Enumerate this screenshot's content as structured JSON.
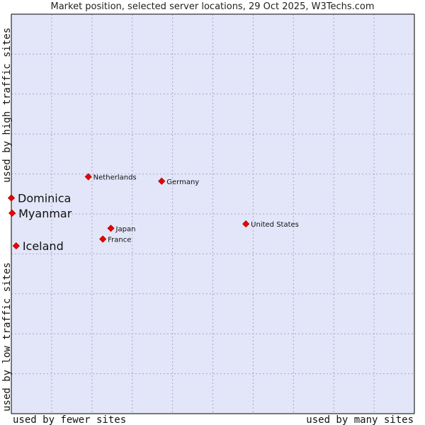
{
  "chart_data": {
    "type": "scatter",
    "title": "Market position, selected server locations, 29 Oct 2025, W3Techs.com",
    "xlabel_left": "used by fewer sites",
    "xlabel_right": "used by many sites",
    "ylabel_bottom": "used by low traffic sites",
    "ylabel_top": "used by high traffic sites",
    "xlim": [
      0,
      100
    ],
    "ylim": [
      0,
      100
    ],
    "grid": true,
    "colors": {
      "plot_bg": "#e3e5f8",
      "grid": "#a8a8c8",
      "point": "#ee0000",
      "axis": "#000000"
    },
    "points": [
      {
        "name": "Netherlands",
        "x": 19.1,
        "y": 59.3,
        "emphasis": false
      },
      {
        "name": "Germany",
        "x": 37.3,
        "y": 58.2,
        "emphasis": false
      },
      {
        "name": "Dominica",
        "x": 0.0,
        "y": 54.0,
        "emphasis": true
      },
      {
        "name": "Myanmar",
        "x": 0.2,
        "y": 50.2,
        "emphasis": true
      },
      {
        "name": "United States",
        "x": 58.2,
        "y": 47.5,
        "emphasis": false
      },
      {
        "name": "Japan",
        "x": 24.7,
        "y": 46.4,
        "emphasis": false
      },
      {
        "name": "France",
        "x": 22.7,
        "y": 43.7,
        "emphasis": false
      },
      {
        "name": "Iceland",
        "x": 1.2,
        "y": 42.0,
        "emphasis": true
      }
    ]
  }
}
